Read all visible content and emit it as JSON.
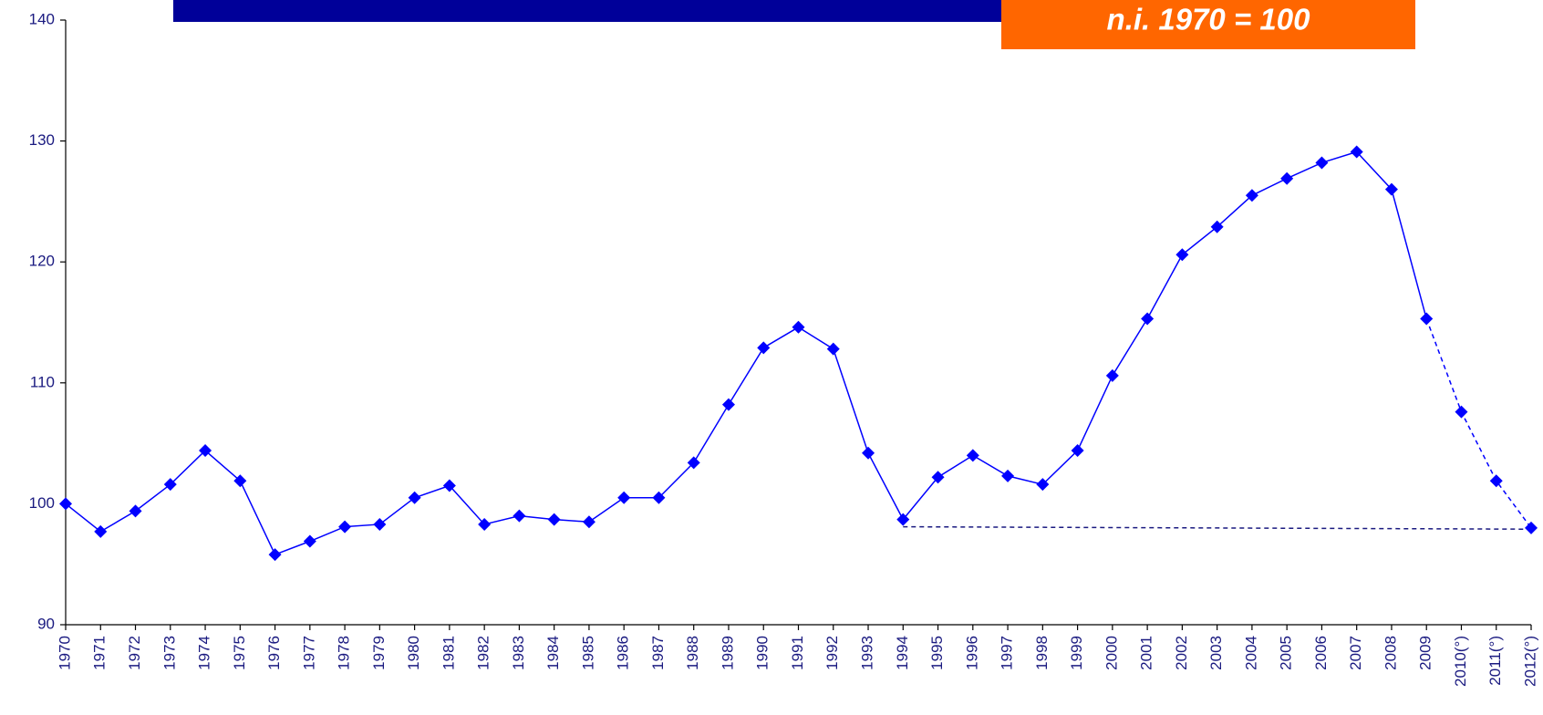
{
  "chart_data": {
    "type": "line",
    "badge": "n.i. 1970 = 100",
    "categories": [
      "1970",
      "1971",
      "1972",
      "1973",
      "1974",
      "1975",
      "1976",
      "1977",
      "1978",
      "1979",
      "1980",
      "1981",
      "1982",
      "1983",
      "1984",
      "1985",
      "1986",
      "1987",
      "1988",
      "1989",
      "1990",
      "1991",
      "1992",
      "1993",
      "1994",
      "1995",
      "1996",
      "1997",
      "1998",
      "1999",
      "2000",
      "2001",
      "2002",
      "2003",
      "2004",
      "2005",
      "2006",
      "2007",
      "2008",
      "2009",
      "2010(°)",
      "2011(°)",
      "2012(°)"
    ],
    "series": [
      {
        "color": "#0000ff",
        "values": [
          100,
          97.7,
          99.4,
          101.6,
          104.4,
          101.9,
          95.8,
          96.9,
          98.1,
          98.3,
          100.5,
          101.5,
          98.3,
          99.0,
          98.7,
          98.5,
          100.5,
          100.5,
          103.4,
          108.2,
          112.9,
          114.6,
          112.8,
          104.2,
          98.7,
          102.2,
          104.0,
          102.3,
          101.6,
          104.4,
          110.6,
          115.3,
          120.6,
          122.9,
          125.5,
          126.9,
          128.2,
          129.1,
          126.0,
          115.3,
          107.6,
          101.9,
          98.0
        ],
        "dashed_from_index": 39
      }
    ],
    "reference_line": {
      "start_index": 24,
      "end_index": 42,
      "values": [
        98.1,
        97.9
      ],
      "color": "#1a1a80",
      "dashed": true
    },
    "ylim": [
      90,
      140
    ],
    "yticks": [
      90,
      100,
      110,
      120,
      130,
      140
    ],
    "header_color": "#000099",
    "badge_color": "#ff6600"
  }
}
